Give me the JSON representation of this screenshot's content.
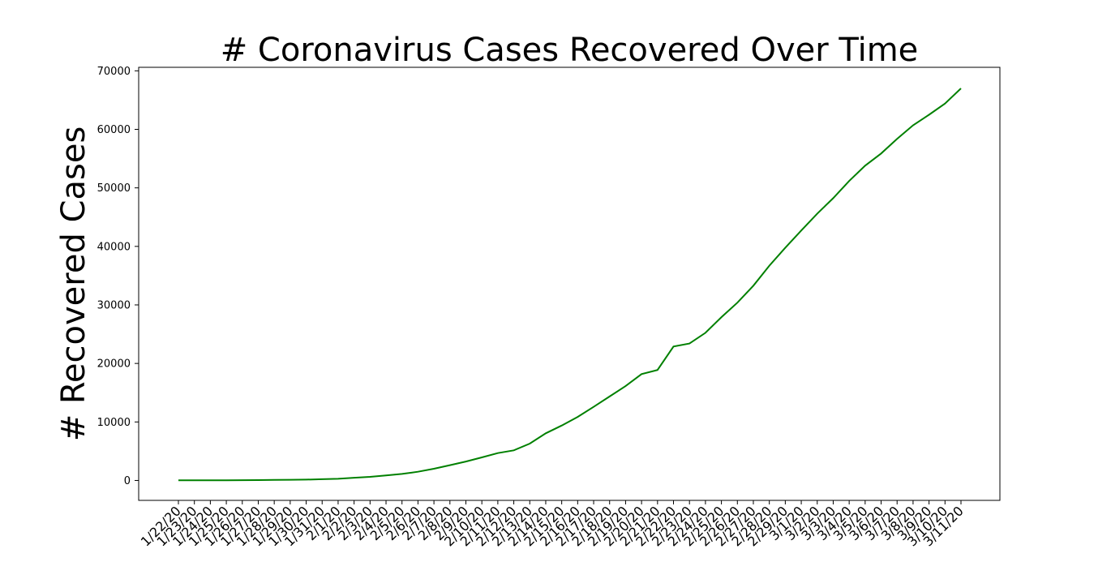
{
  "chart_data": {
    "type": "line",
    "title": "# Coronavirus Cases Recovered Over Time",
    "xlabel": "",
    "ylabel": "# Recovered Cases",
    "ylim": [
      -3400,
      70600
    ],
    "yticks": [
      0,
      10000,
      20000,
      30000,
      40000,
      50000,
      60000,
      70000
    ],
    "ytick_labels": [
      "0",
      "10000",
      "20000",
      "30000",
      "40000",
      "50000",
      "60000",
      "70000"
    ],
    "grid": false,
    "legend": "none",
    "color": "#008000",
    "x": [
      "1/22/20",
      "1/23/20",
      "1/24/20",
      "1/25/20",
      "1/26/20",
      "1/27/20",
      "1/28/20",
      "1/29/20",
      "1/30/20",
      "1/31/20",
      "2/1/20",
      "2/2/20",
      "2/3/20",
      "2/4/20",
      "2/5/20",
      "2/6/20",
      "2/7/20",
      "2/8/20",
      "2/9/20",
      "2/10/20",
      "2/11/20",
      "2/12/20",
      "2/13/20",
      "2/14/20",
      "2/15/20",
      "2/16/20",
      "2/17/20",
      "2/18/20",
      "2/19/20",
      "2/20/20",
      "2/21/20",
      "2/22/20",
      "2/23/20",
      "2/24/20",
      "2/25/20",
      "2/26/20",
      "2/27/20",
      "2/28/20",
      "2/29/20",
      "3/1/20",
      "3/2/20",
      "3/3/20",
      "3/4/20",
      "3/5/20",
      "3/6/20",
      "3/7/20",
      "3/8/20",
      "3/9/20",
      "3/10/20",
      "3/11/20"
    ],
    "series": [
      {
        "values": [
          28,
          30,
          36,
          39,
          52,
          61,
          107,
          126,
          143,
          222,
          284,
          472,
          623,
          852,
          1124,
          1487,
          2011,
          2616,
          3244,
          3946,
          4683,
          5150,
          6295,
          8058,
          9395,
          10865,
          12583,
          14352,
          16121,
          18177,
          18890,
          22886,
          23394,
          25227,
          27905,
          30384,
          33277,
          36711,
          39782,
          42716,
          45602,
          48228,
          51170,
          53796,
          55865,
          58358,
          60694,
          62494,
          64404,
          67003
        ]
      }
    ]
  }
}
